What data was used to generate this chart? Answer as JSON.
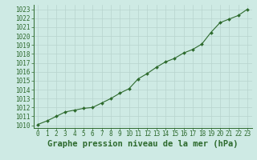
{
  "x": [
    0,
    1,
    2,
    3,
    4,
    5,
    6,
    7,
    8,
    9,
    10,
    11,
    12,
    13,
    14,
    15,
    16,
    17,
    18,
    19,
    20,
    21,
    22,
    23
  ],
  "y": [
    1010.1,
    1010.5,
    1011.0,
    1011.5,
    1011.7,
    1011.9,
    1012.0,
    1012.5,
    1013.0,
    1013.6,
    1014.1,
    1015.2,
    1015.8,
    1016.5,
    1017.1,
    1017.5,
    1018.1,
    1018.5,
    1019.1,
    1020.4,
    1021.5,
    1021.9,
    1022.3,
    1023.0
  ],
  "line_color": "#2d6a2d",
  "marker": "D",
  "marker_size": 2.0,
  "bg_color": "#ceeae4",
  "grid_color": "#b8d4ce",
  "xlabel": "Graphe pression niveau de la mer (hPa)",
  "xlabel_fontsize": 7.5,
  "xlabel_color": "#2d6a2d",
  "ylabel_ticks": [
    1010,
    1011,
    1012,
    1013,
    1014,
    1015,
    1016,
    1017,
    1018,
    1019,
    1020,
    1021,
    1022,
    1023
  ],
  "ylim": [
    1009.7,
    1023.5
  ],
  "xlim": [
    -0.5,
    23.5
  ],
  "tick_fontsize": 5.5,
  "tick_color": "#2d6a2d",
  "spine_color": "#2d6a2d"
}
